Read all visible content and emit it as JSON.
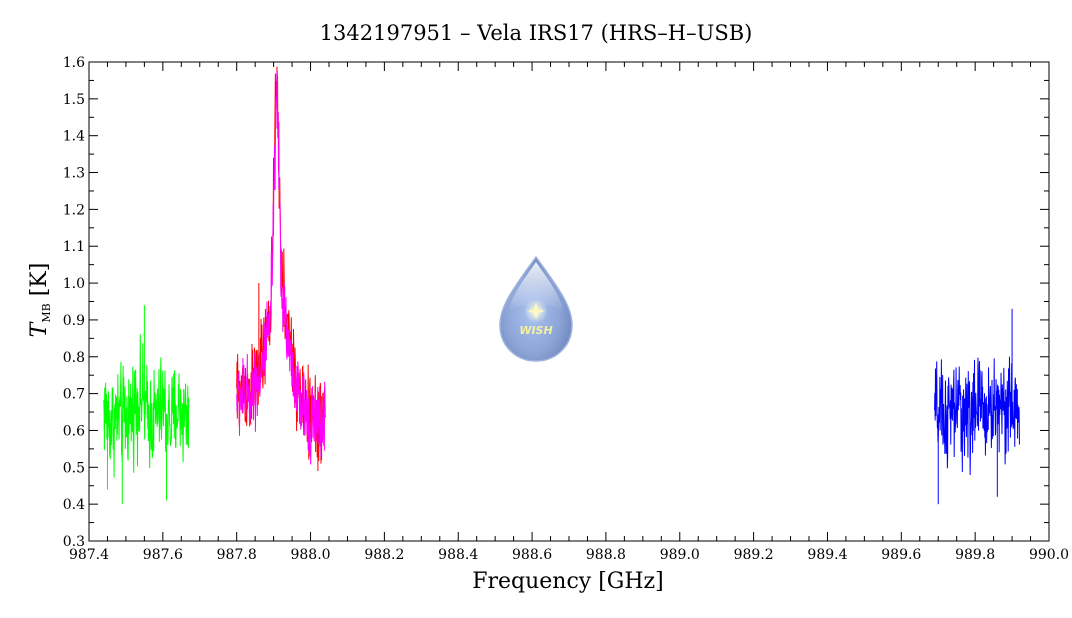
{
  "chart_data": {
    "type": "line",
    "title": "1342197951 – Vela IRS17 (HRS–H–USB)",
    "xlabel": "Frequency [GHz]",
    "ylabel": "T",
    "ylabel_subscript": "MB",
    "ylabel_unit": " [K]",
    "xlim": [
      987.4,
      990.0
    ],
    "ylim": [
      0.3,
      1.6
    ],
    "x_ticks": [
      987.4,
      987.6,
      987.8,
      988.0,
      988.2,
      988.4,
      988.6,
      988.8,
      989.0,
      989.2,
      989.4,
      989.6,
      989.8,
      990.0
    ],
    "x_tick_labels": [
      "987.4",
      "987.6",
      "987.8",
      "988.0",
      "988.2",
      "988.4",
      "988.6",
      "988.8",
      "989.0",
      "989.2",
      "989.4",
      "989.6",
      "989.8",
      "990.0"
    ],
    "y_ticks": [
      0.3,
      0.4,
      0.5,
      0.6,
      0.7,
      0.8,
      0.9,
      1.0,
      1.1,
      1.2,
      1.3,
      1.4,
      1.5,
      1.6
    ],
    "y_tick_labels": [
      "0.3",
      "0.4",
      "0.5",
      "0.6",
      "0.7",
      "0.8",
      "0.9",
      "1.0",
      "1.1",
      "1.2",
      "1.3",
      "1.4",
      "1.5",
      "1.6"
    ],
    "grid": false,
    "series": [
      {
        "color": "#00ff00",
        "x_range": [
          987.44,
          987.67
        ],
        "points": [
          [
            987.44,
            0.66
          ],
          [
            987.46,
            0.62
          ],
          [
            987.48,
            0.64
          ],
          [
            987.5,
            0.63
          ],
          [
            987.52,
            0.66
          ],
          [
            987.54,
            0.7
          ],
          [
            987.56,
            0.63
          ],
          [
            987.58,
            0.64
          ],
          [
            987.6,
            0.67
          ],
          [
            987.62,
            0.62
          ],
          [
            987.64,
            0.66
          ],
          [
            987.66,
            0.64
          ],
          [
            987.67,
            0.65
          ]
        ],
        "noise_amplitude": 0.2,
        "spikes": [
          [
            987.55,
            0.94
          ],
          [
            987.49,
            0.4
          ],
          [
            987.61,
            0.41
          ],
          [
            987.45,
            0.44
          ]
        ]
      },
      {
        "color": "#ff0000",
        "x_range": [
          987.8,
          988.04
        ],
        "points": [
          [
            987.8,
            0.7
          ],
          [
            987.84,
            0.71
          ],
          [
            987.87,
            0.79
          ],
          [
            987.89,
            0.9
          ],
          [
            987.9,
            1.2
          ],
          [
            987.905,
            1.48
          ],
          [
            987.91,
            1.55
          ],
          [
            987.915,
            1.3
          ],
          [
            987.92,
            1.05
          ],
          [
            987.94,
            0.85
          ],
          [
            987.97,
            0.68
          ],
          [
            988.0,
            0.64
          ],
          [
            988.04,
            0.63
          ]
        ],
        "noise_amplitude": 0.17,
        "spikes": [
          [
            987.86,
            1.0
          ],
          [
            987.93,
            0.99
          ],
          [
            988.02,
            0.49
          ]
        ]
      },
      {
        "color": "#ff00ff",
        "x_range": [
          987.8,
          988.04
        ],
        "points": [
          [
            987.8,
            0.69
          ],
          [
            987.84,
            0.7
          ],
          [
            987.87,
            0.77
          ],
          [
            987.89,
            0.88
          ],
          [
            987.9,
            1.15
          ],
          [
            987.905,
            1.4
          ],
          [
            987.91,
            1.5
          ],
          [
            987.915,
            1.28
          ],
          [
            987.92,
            1.02
          ],
          [
            987.94,
            0.83
          ],
          [
            987.97,
            0.67
          ],
          [
            988.0,
            0.63
          ],
          [
            988.04,
            0.62
          ]
        ],
        "noise_amplitude": 0.15,
        "spikes": []
      },
      {
        "color": "#0000ff",
        "x_range": [
          989.69,
          989.92
        ],
        "points": [
          [
            989.69,
            0.65
          ],
          [
            989.72,
            0.63
          ],
          [
            989.75,
            0.66
          ],
          [
            989.78,
            0.64
          ],
          [
            989.81,
            0.67
          ],
          [
            989.84,
            0.65
          ],
          [
            989.87,
            0.68
          ],
          [
            989.9,
            0.66
          ],
          [
            989.92,
            0.64
          ]
        ],
        "noise_amplitude": 0.2,
        "spikes": [
          [
            989.9,
            0.93
          ],
          [
            989.7,
            0.4
          ],
          [
            989.86,
            0.42
          ]
        ]
      }
    ]
  },
  "logo": {
    "text": "WISH",
    "icon": "water-drop-logo-icon",
    "color": "#7f9fd4"
  }
}
